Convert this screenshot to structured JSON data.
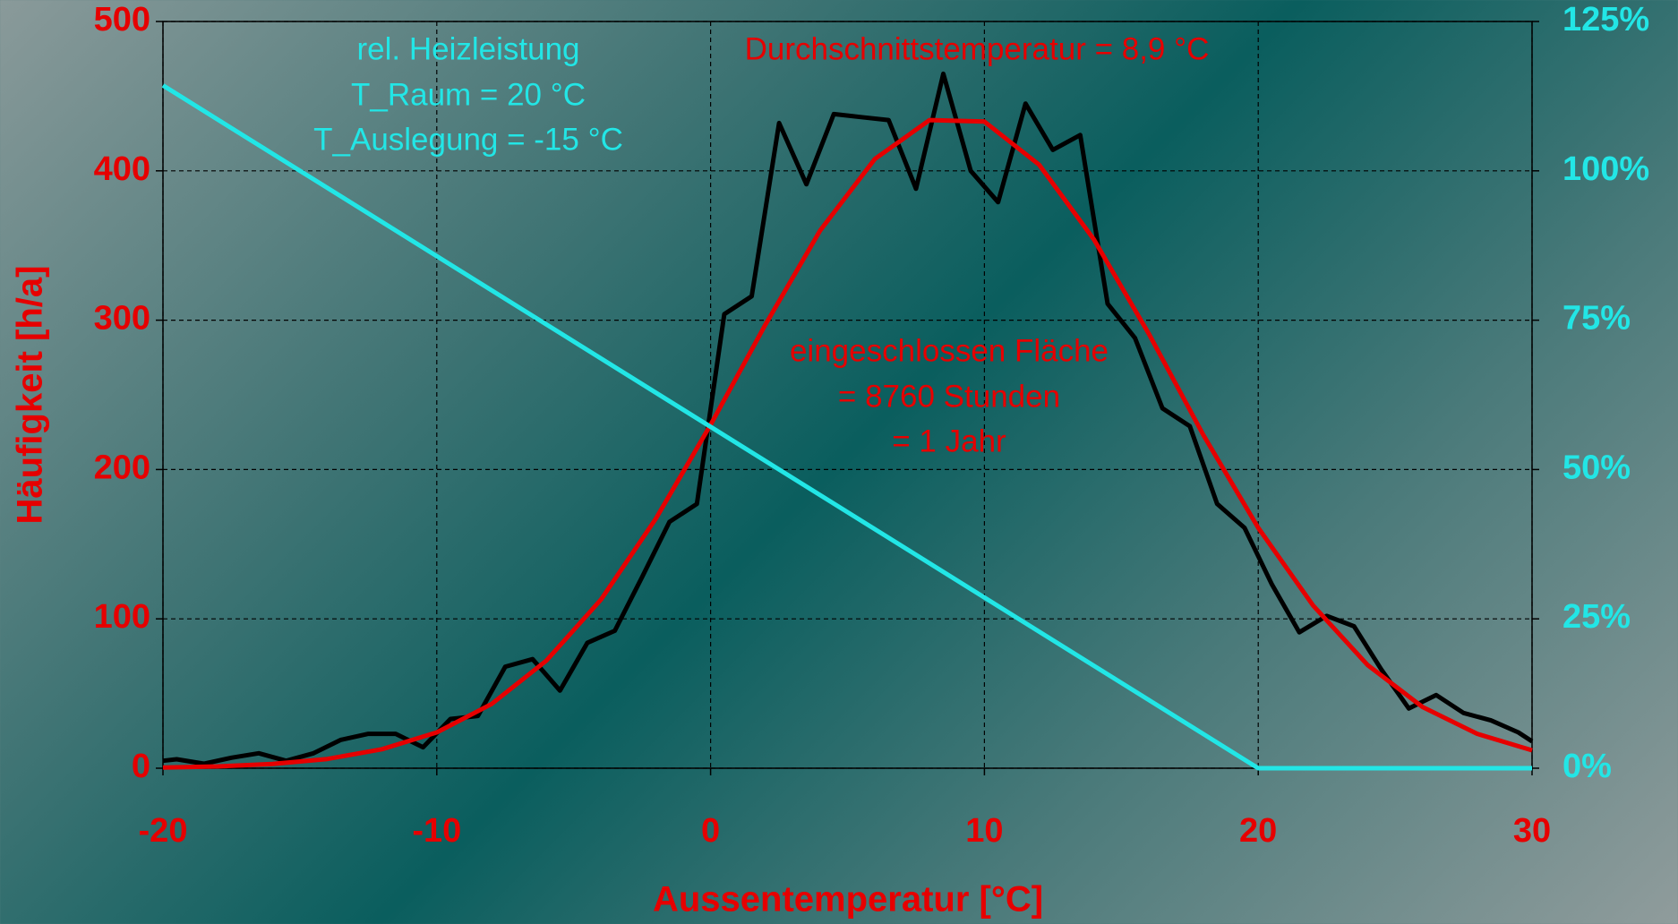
{
  "chart_data": {
    "type": "line",
    "xlabel": "Aussentemperatur [°C]",
    "ylabel": "Häufigkeit [h/a]",
    "xlim": [
      -20,
      30
    ],
    "xticks": [
      -20,
      -10,
      0,
      10,
      20,
      30
    ],
    "ylim": [
      0,
      500
    ],
    "yticks": [
      0,
      100,
      200,
      300,
      400,
      500
    ],
    "y2lim": [
      0,
      125
    ],
    "y2ticks": [
      {
        "value": 0,
        "label": "0%"
      },
      {
        "value": 25,
        "label": "25%"
      },
      {
        "value": 50,
        "label": "50%"
      },
      {
        "value": 75,
        "label": "75%"
      },
      {
        "value": 100,
        "label": "100%"
      },
      {
        "value": 125,
        "label": "125%"
      }
    ],
    "grid": true,
    "annotations": [
      {
        "text": "rel. Heizleistung",
        "color": "#22e6e6"
      },
      {
        "text": "T_Raum = 20 °C",
        "color": "#22e6e6"
      },
      {
        "text": "T_Auslegung = -15 °C",
        "color": "#22e6e6"
      },
      {
        "text": "Durchschnittstemperatur = 8,9 °C",
        "color": "#e60000"
      },
      {
        "text": "eingeschlossen Fläche",
        "color": "#e60000"
      },
      {
        "text": "= 8760 Stunden",
        "color": "#e60000"
      },
      {
        "text": "= 1 Jahr",
        "color": "#e60000"
      }
    ],
    "series": [
      {
        "color": "#000000",
        "x": [
          -20,
          -19.5,
          -18.5,
          -17.5,
          -16.5,
          -15.5,
          -14.5,
          -13.5,
          -12.5,
          -11.5,
          -10.5,
          -9.5,
          -8.5,
          -7.5,
          -6.5,
          -5.5,
          -4.5,
          -3.5,
          -2.5,
          -1.5,
          -0.5,
          0.5,
          1.5,
          2.5,
          3.5,
          4.5,
          5.5,
          6.5,
          7.5,
          8.5,
          9.5,
          10.5,
          11.5,
          12.5,
          13.5,
          14.5,
          15.5,
          16.5,
          17.5,
          18.5,
          19.5,
          20.5,
          21.5,
          22.5,
          23.5,
          24.5,
          25.5,
          26.5,
          27.5,
          28.5,
          29.5,
          30
        ],
        "values": [
          5,
          6,
          3,
          7,
          10,
          5,
          10,
          19,
          23,
          23,
          14,
          33,
          35,
          68,
          73,
          52,
          84,
          92,
          128,
          165,
          177,
          304,
          316,
          432,
          391,
          438,
          436,
          434,
          388,
          465,
          400,
          379,
          445,
          414,
          424,
          311,
          288,
          241,
          229,
          177,
          161,
          123,
          91,
          102,
          95,
          66,
          40,
          49,
          37,
          32,
          24,
          18
        ]
      },
      {
        "color": "#e60000",
        "x": [
          -20,
          -18,
          -16,
          -14,
          -12,
          -10,
          -8,
          -6,
          -4,
          -2,
          0,
          2,
          4,
          6,
          8,
          10,
          12,
          14,
          16,
          18,
          20,
          22,
          24,
          26,
          28,
          30
        ],
        "values": [
          0.5,
          1.2,
          2.9,
          6.2,
          12.7,
          24,
          43,
          72,
          113,
          167,
          230,
          297,
          360,
          408,
          434,
          433,
          404,
          354,
          291,
          223,
          161,
          109,
          69,
          41,
          23,
          12
        ]
      },
      {
        "color": "#22e6e6",
        "axis": "y2",
        "x": [
          -20,
          20,
          30
        ],
        "values": [
          114.3,
          0,
          0
        ]
      }
    ]
  }
}
